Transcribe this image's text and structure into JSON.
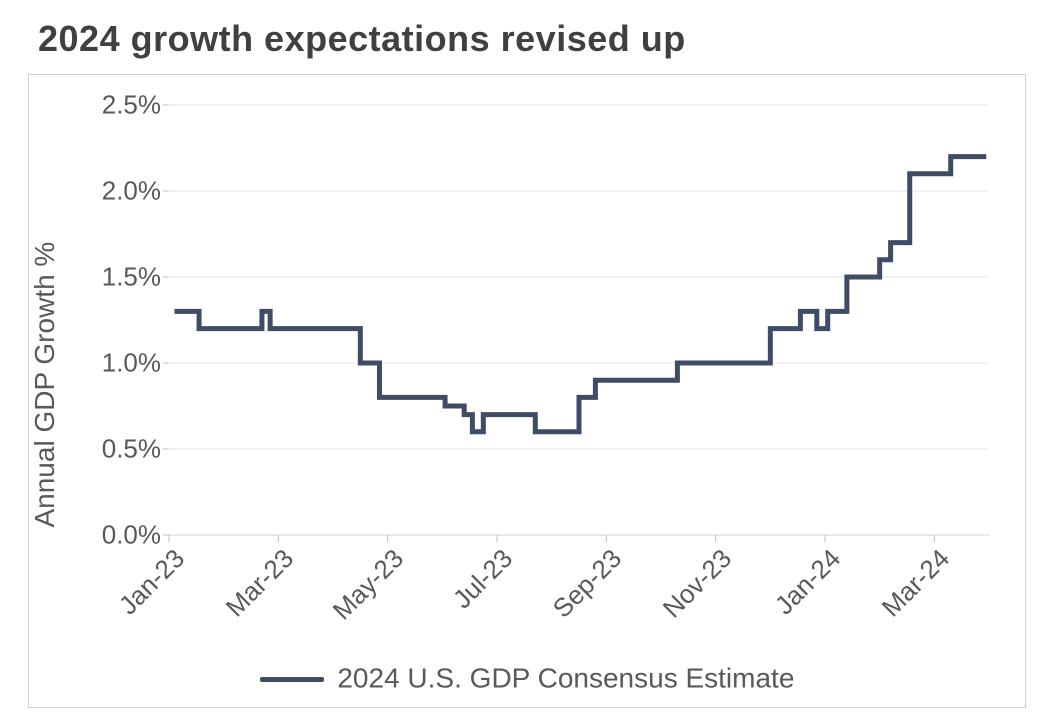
{
  "title": "2024 growth expectations revised up",
  "chart": {
    "type": "step-line",
    "ylabel": "Annual GDP Growth %",
    "ylim": [
      0.0,
      2.5
    ],
    "ytick_step": 0.5,
    "ytick_labels": [
      "0.0%",
      "0.5%",
      "1.0%",
      "1.5%",
      "2.0%",
      "2.5%"
    ],
    "xlim": [
      0,
      15
    ],
    "xtick_positions": [
      0,
      2,
      4,
      6,
      8,
      10,
      12,
      14
    ],
    "xtick_labels": [
      "Jan-23",
      "Mar-23",
      "May-23",
      "Jul-23",
      "Sep-23",
      "Nov-23",
      "Jan-24",
      "Mar-24"
    ],
    "series": {
      "label": "2024 U.S. GDP Consensus Estimate",
      "color": "#3f4c66",
      "line_width": 5,
      "points": [
        [
          0.1,
          1.3
        ],
        [
          0.55,
          1.3
        ],
        [
          0.55,
          1.2
        ],
        [
          1.7,
          1.2
        ],
        [
          1.7,
          1.3
        ],
        [
          1.85,
          1.3
        ],
        [
          1.85,
          1.2
        ],
        [
          3.5,
          1.2
        ],
        [
          3.5,
          1.0
        ],
        [
          3.85,
          1.0
        ],
        [
          3.85,
          0.8
        ],
        [
          5.05,
          0.8
        ],
        [
          5.05,
          0.75
        ],
        [
          5.4,
          0.75
        ],
        [
          5.4,
          0.7
        ],
        [
          5.55,
          0.7
        ],
        [
          5.55,
          0.6
        ],
        [
          5.75,
          0.6
        ],
        [
          5.75,
          0.7
        ],
        [
          6.7,
          0.7
        ],
        [
          6.7,
          0.6
        ],
        [
          7.5,
          0.6
        ],
        [
          7.5,
          0.8
        ],
        [
          7.8,
          0.8
        ],
        [
          7.8,
          0.9
        ],
        [
          9.3,
          0.9
        ],
        [
          9.3,
          1.0
        ],
        [
          11.0,
          1.0
        ],
        [
          11.0,
          1.2
        ],
        [
          11.55,
          1.2
        ],
        [
          11.55,
          1.3
        ],
        [
          11.85,
          1.3
        ],
        [
          11.85,
          1.2
        ],
        [
          12.05,
          1.2
        ],
        [
          12.05,
          1.3
        ],
        [
          12.4,
          1.3
        ],
        [
          12.4,
          1.5
        ],
        [
          13.0,
          1.5
        ],
        [
          13.0,
          1.6
        ],
        [
          13.2,
          1.6
        ],
        [
          13.2,
          1.7
        ],
        [
          13.55,
          1.7
        ],
        [
          13.55,
          2.1
        ],
        [
          14.3,
          2.1
        ],
        [
          14.3,
          2.2
        ],
        [
          14.95,
          2.2
        ]
      ]
    },
    "grid_color": "#e6e6e6",
    "axis_color": "#d0d0d0",
    "background_color": "#ffffff",
    "tick_mark_color": "#bfbfbf",
    "label_fontsize": 28,
    "tick_fontsize": 26,
    "title_fontsize": 36
  },
  "legend_swatch_width": 64
}
